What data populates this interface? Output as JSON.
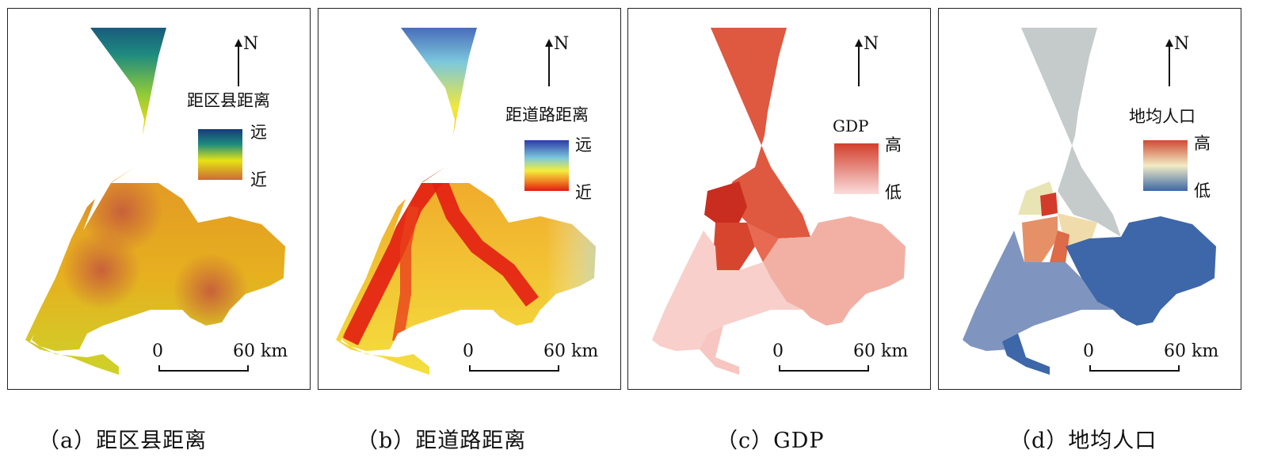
{
  "north_label": "N",
  "scale": {
    "zero": "0",
    "max": "60 km"
  },
  "panels": [
    {
      "caption": "（a）距区县距离",
      "legend_title": "距区县距离",
      "legend_high": "远",
      "legend_low": "近",
      "colors": [
        "#173a7a",
        "#1d8c7e",
        "#e6e313",
        "#cc6a36"
      ]
    },
    {
      "caption": "（b）距道路距离",
      "legend_title": "距道路距离",
      "legend_high": "远",
      "legend_low": "近",
      "colors": [
        "#2d3aa8",
        "#7cc8dc",
        "#f4ee3c",
        "#e01b12"
      ]
    },
    {
      "caption": "（c）GDP",
      "legend_title": "GDP",
      "legend_high": "高",
      "legend_low": "低",
      "colors": [
        "#d3402c",
        "#fadcdc"
      ]
    },
    {
      "caption": "（d）地均人口",
      "legend_title": "地均人口",
      "legend_high": "高",
      "legend_low": "低",
      "colors": [
        "#d04a34",
        "#f2ecc4",
        "#3d67a8"
      ]
    }
  ]
}
